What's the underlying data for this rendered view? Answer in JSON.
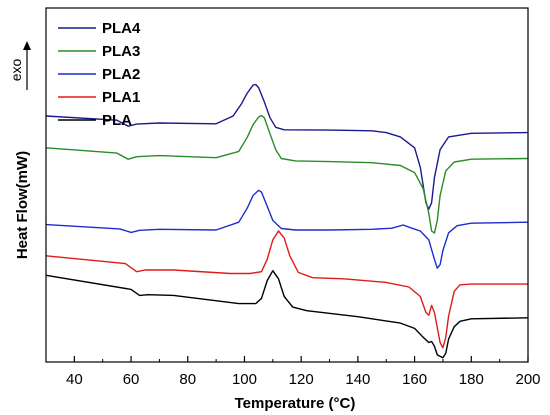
{
  "chart_data": {
    "type": "line",
    "xlabel": "Temperature (",
    "xlabel_unit": "°C",
    "xlabel_close": ")",
    "ylabel": "Heat Flow(mW)",
    "exo_label": "exo",
    "xlim": [
      30,
      200
    ],
    "ylim": [
      0,
      100
    ],
    "x_ticks": [
      40,
      60,
      80,
      100,
      120,
      140,
      160,
      180,
      200
    ],
    "legend_position": "top-left",
    "series": [
      {
        "name": "PLA4",
        "color": "#1a1a8c",
        "points": [
          [
            30,
            69.5
          ],
          [
            55,
            68.3
          ],
          [
            59,
            66.6
          ],
          [
            62,
            67.2
          ],
          [
            70,
            67.5
          ],
          [
            90,
            67.3
          ],
          [
            96,
            69.5
          ],
          [
            99,
            73.0
          ],
          [
            101,
            76.0
          ],
          [
            103,
            78.2
          ],
          [
            104,
            78.4
          ],
          [
            105,
            77.5
          ],
          [
            107,
            73.5
          ],
          [
            109,
            69.0
          ],
          [
            111,
            66.3
          ],
          [
            114,
            65.6
          ],
          [
            130,
            65.5
          ],
          [
            145,
            65.3
          ],
          [
            150,
            64.8
          ],
          [
            155,
            63.6
          ],
          [
            160,
            60.5
          ],
          [
            162,
            55.0
          ],
          [
            163,
            50.0
          ],
          [
            164,
            45.0
          ],
          [
            165,
            43.2
          ],
          [
            166,
            45.0
          ],
          [
            167,
            52.0
          ],
          [
            169,
            60.0
          ],
          [
            172,
            63.6
          ],
          [
            180,
            64.6
          ],
          [
            200,
            64.8
          ]
        ]
      },
      {
        "name": "PLA3",
        "color": "#2a8c2a",
        "points": [
          [
            30,
            60.5
          ],
          [
            55,
            59.0
          ],
          [
            59,
            57.3
          ],
          [
            62,
            58.0
          ],
          [
            70,
            58.3
          ],
          [
            90,
            57.7
          ],
          [
            98,
            59.5
          ],
          [
            101,
            63.5
          ],
          [
            103,
            67.0
          ],
          [
            105,
            69.2
          ],
          [
            106,
            69.6
          ],
          [
            107,
            69.0
          ],
          [
            109,
            64.5
          ],
          [
            111,
            60.0
          ],
          [
            113,
            57.5
          ],
          [
            118,
            56.8
          ],
          [
            130,
            56.6
          ],
          [
            145,
            56.3
          ],
          [
            155,
            55.5
          ],
          [
            160,
            53.5
          ],
          [
            163,
            49.0
          ],
          [
            165,
            42.0
          ],
          [
            166,
            37.0
          ],
          [
            167,
            36.4
          ],
          [
            168,
            40.0
          ],
          [
            169,
            47.0
          ],
          [
            171,
            54.0
          ],
          [
            174,
            56.5
          ],
          [
            180,
            57.3
          ],
          [
            200,
            57.5
          ]
        ]
      },
      {
        "name": "PLA2",
        "color": "#1f2dcc",
        "points": [
          [
            30,
            38.8
          ],
          [
            56,
            37.6
          ],
          [
            60,
            36.6
          ],
          [
            63,
            37.2
          ],
          [
            70,
            37.5
          ],
          [
            90,
            37.3
          ],
          [
            98,
            39.5
          ],
          [
            101,
            43.5
          ],
          [
            103,
            47.0
          ],
          [
            105,
            48.5
          ],
          [
            106,
            48.0
          ],
          [
            108,
            44.0
          ],
          [
            110,
            40.0
          ],
          [
            113,
            37.7
          ],
          [
            118,
            37.3
          ],
          [
            130,
            37.3
          ],
          [
            145,
            37.5
          ],
          [
            152,
            37.8
          ],
          [
            156,
            38.7
          ],
          [
            159,
            37.8
          ],
          [
            162,
            37.0
          ],
          [
            165,
            34.5
          ],
          [
            167,
            29.0
          ],
          [
            168,
            26.5
          ],
          [
            169,
            27.5
          ],
          [
            170,
            31.5
          ],
          [
            172,
            36.5
          ],
          [
            175,
            38.5
          ],
          [
            180,
            39.2
          ],
          [
            200,
            39.5
          ]
        ]
      },
      {
        "name": "PLA1",
        "color": "#e01b1b",
        "points": [
          [
            30,
            30.0
          ],
          [
            58,
            27.8
          ],
          [
            62,
            25.5
          ],
          [
            65,
            26.0
          ],
          [
            75,
            26.0
          ],
          [
            95,
            25.0
          ],
          [
            102,
            25.0
          ],
          [
            106,
            25.5
          ],
          [
            108,
            29.0
          ],
          [
            110,
            34.5
          ],
          [
            112,
            37.0
          ],
          [
            114,
            35.0
          ],
          [
            116,
            30.0
          ],
          [
            119,
            25.3
          ],
          [
            124,
            23.8
          ],
          [
            135,
            23.5
          ],
          [
            150,
            22.5
          ],
          [
            158,
            21.2
          ],
          [
            162,
            18.5
          ],
          [
            164,
            14.0
          ],
          [
            165,
            13.2
          ],
          [
            166,
            16.0
          ],
          [
            167,
            14.0
          ],
          [
            169,
            5.5
          ],
          [
            170,
            4.0
          ],
          [
            171,
            7.0
          ],
          [
            172,
            13.0
          ],
          [
            174,
            20.0
          ],
          [
            176,
            21.8
          ],
          [
            180,
            22.0
          ],
          [
            200,
            22.0
          ]
        ]
      },
      {
        "name": "PLA",
        "color": "#000000",
        "points": [
          [
            30,
            24.5
          ],
          [
            60,
            20.5
          ],
          [
            63,
            18.8
          ],
          [
            66,
            19.0
          ],
          [
            75,
            18.8
          ],
          [
            98,
            16.5
          ],
          [
            104,
            16.5
          ],
          [
            106,
            18.0
          ],
          [
            108,
            23.0
          ],
          [
            110,
            25.8
          ],
          [
            112,
            23.5
          ],
          [
            114,
            18.5
          ],
          [
            117,
            15.5
          ],
          [
            122,
            14.5
          ],
          [
            140,
            12.8
          ],
          [
            155,
            11.0
          ],
          [
            160,
            9.5
          ],
          [
            163,
            7.0
          ],
          [
            165,
            5.5
          ],
          [
            166,
            5.8
          ],
          [
            167,
            4.5
          ],
          [
            168,
            2.0
          ],
          [
            170,
            1.2
          ],
          [
            171,
            2.5
          ],
          [
            172,
            6.5
          ],
          [
            174,
            10.0
          ],
          [
            176,
            11.5
          ],
          [
            180,
            12.2
          ],
          [
            200,
            12.5
          ]
        ]
      }
    ]
  }
}
